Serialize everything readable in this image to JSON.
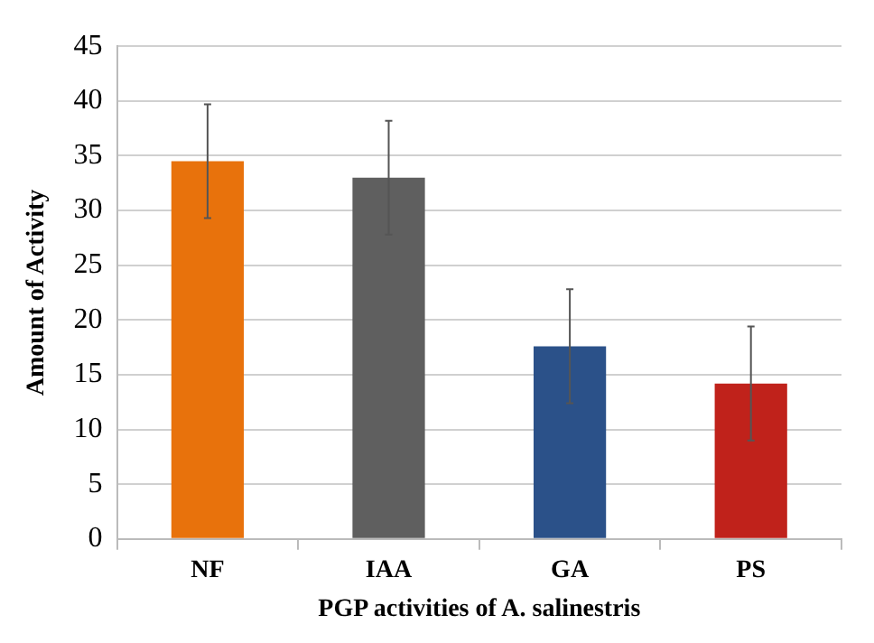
{
  "chart_data": {
    "type": "bar",
    "xlabel": "PGP activities of A. salinestris",
    "ylabel": "Amount of Activity",
    "categories": [
      "NF",
      "IAA",
      "GA",
      "PS"
    ],
    "values": [
      34.5,
      33,
      17.6,
      14.2
    ],
    "colors": [
      "#e8720c",
      "#5f5f5f",
      "#2b5189",
      "#c0221b"
    ],
    "errors": [
      5.2,
      5.2,
      5.2,
      5.2
    ],
    "ylim": [
      0,
      45
    ],
    "yticks": [
      0,
      5,
      10,
      15,
      20,
      25,
      30,
      35,
      40,
      45
    ],
    "grid": "y"
  }
}
